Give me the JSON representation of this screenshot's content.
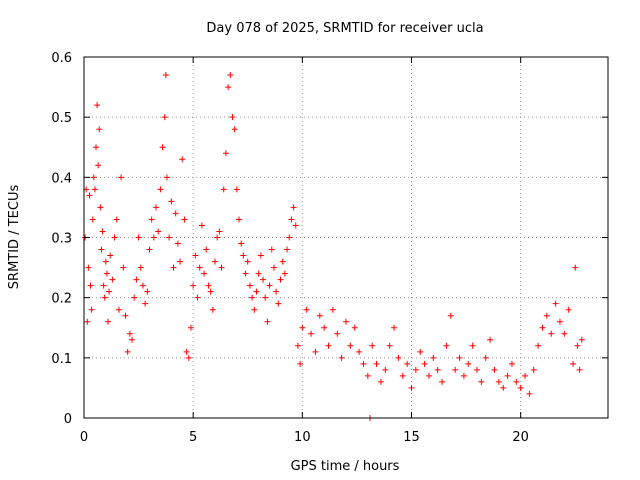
{
  "chart_data": {
    "type": "scatter",
    "title": "Day 078 of 2025, SRMTID for receiver ucla",
    "xlabel": "GPS time / hours",
    "ylabel": "SRMTID / TECUs",
    "xlim": [
      0,
      24
    ],
    "ylim": [
      0,
      0.6
    ],
    "xticks": [
      0,
      5,
      10,
      15,
      20
    ],
    "yticks": [
      0,
      0.1,
      0.2,
      0.3,
      0.4,
      0.5,
      0.6
    ],
    "grid": true,
    "marker": "+",
    "series": [
      {
        "name": "SRMTID",
        "color": "#ff0000",
        "points": [
          [
            0.05,
            0.3
          ],
          [
            0.1,
            0.38
          ],
          [
            0.15,
            0.16
          ],
          [
            0.2,
            0.25
          ],
          [
            0.25,
            0.37
          ],
          [
            0.3,
            0.22
          ],
          [
            0.35,
            0.18
          ],
          [
            0.4,
            0.33
          ],
          [
            0.45,
            0.4
          ],
          [
            0.5,
            0.38
          ],
          [
            0.55,
            0.45
          ],
          [
            0.6,
            0.52
          ],
          [
            0.65,
            0.42
          ],
          [
            0.7,
            0.48
          ],
          [
            0.75,
            0.35
          ],
          [
            0.8,
            0.28
          ],
          [
            0.85,
            0.31
          ],
          [
            0.9,
            0.22
          ],
          [
            0.95,
            0.2
          ],
          [
            1.0,
            0.26
          ],
          [
            1.05,
            0.24
          ],
          [
            1.1,
            0.16
          ],
          [
            1.15,
            0.21
          ],
          [
            1.2,
            0.27
          ],
          [
            1.3,
            0.23
          ],
          [
            1.4,
            0.3
          ],
          [
            1.5,
            0.33
          ],
          [
            1.6,
            0.18
          ],
          [
            1.7,
            0.4
          ],
          [
            1.8,
            0.25
          ],
          [
            1.9,
            0.17
          ],
          [
            2.0,
            0.11
          ],
          [
            2.1,
            0.14
          ],
          [
            2.2,
            0.13
          ],
          [
            2.3,
            0.2
          ],
          [
            2.4,
            0.23
          ],
          [
            2.5,
            0.3
          ],
          [
            2.6,
            0.25
          ],
          [
            2.7,
            0.22
          ],
          [
            2.8,
            0.19
          ],
          [
            2.9,
            0.21
          ],
          [
            3.0,
            0.28
          ],
          [
            3.1,
            0.33
          ],
          [
            3.2,
            0.3
          ],
          [
            3.3,
            0.35
          ],
          [
            3.4,
            0.31
          ],
          [
            3.5,
            0.38
          ],
          [
            3.6,
            0.45
          ],
          [
            3.7,
            0.5
          ],
          [
            3.75,
            0.57
          ],
          [
            3.8,
            0.4
          ],
          [
            3.9,
            0.3
          ],
          [
            4.0,
            0.36
          ],
          [
            4.1,
            0.25
          ],
          [
            4.2,
            0.34
          ],
          [
            4.3,
            0.29
          ],
          [
            4.4,
            0.26
          ],
          [
            4.5,
            0.43
          ],
          [
            4.6,
            0.33
          ],
          [
            4.7,
            0.11
          ],
          [
            4.8,
            0.1
          ],
          [
            4.9,
            0.15
          ],
          [
            5.0,
            0.22
          ],
          [
            5.1,
            0.27
          ],
          [
            5.2,
            0.2
          ],
          [
            5.3,
            0.25
          ],
          [
            5.4,
            0.32
          ],
          [
            5.5,
            0.24
          ],
          [
            5.6,
            0.28
          ],
          [
            5.7,
            0.22
          ],
          [
            5.8,
            0.21
          ],
          [
            5.9,
            0.18
          ],
          [
            6.0,
            0.26
          ],
          [
            6.1,
            0.3
          ],
          [
            6.2,
            0.31
          ],
          [
            6.3,
            0.25
          ],
          [
            6.4,
            0.38
          ],
          [
            6.5,
            0.44
          ],
          [
            6.6,
            0.55
          ],
          [
            6.7,
            0.57
          ],
          [
            6.8,
            0.5
          ],
          [
            6.9,
            0.48
          ],
          [
            7.0,
            0.38
          ],
          [
            7.1,
            0.33
          ],
          [
            7.2,
            0.29
          ],
          [
            7.3,
            0.27
          ],
          [
            7.4,
            0.24
          ],
          [
            7.5,
            0.26
          ],
          [
            7.6,
            0.22
          ],
          [
            7.7,
            0.2
          ],
          [
            7.8,
            0.18
          ],
          [
            7.9,
            0.21
          ],
          [
            8.0,
            0.24
          ],
          [
            8.1,
            0.27
          ],
          [
            8.2,
            0.23
          ],
          [
            8.3,
            0.2
          ],
          [
            8.4,
            0.16
          ],
          [
            8.5,
            0.22
          ],
          [
            8.6,
            0.28
          ],
          [
            8.7,
            0.25
          ],
          [
            8.8,
            0.21
          ],
          [
            8.9,
            0.19
          ],
          [
            9.0,
            0.23
          ],
          [
            9.1,
            0.26
          ],
          [
            9.2,
            0.24
          ],
          [
            9.3,
            0.28
          ],
          [
            9.4,
            0.3
          ],
          [
            9.5,
            0.33
          ],
          [
            9.6,
            0.35
          ],
          [
            9.7,
            0.32
          ],
          [
            9.8,
            0.12
          ],
          [
            9.9,
            0.09
          ],
          [
            10.0,
            0.15
          ],
          [
            10.2,
            0.18
          ],
          [
            10.4,
            0.14
          ],
          [
            10.6,
            0.11
          ],
          [
            10.8,
            0.17
          ],
          [
            11.0,
            0.15
          ],
          [
            11.2,
            0.12
          ],
          [
            11.4,
            0.18
          ],
          [
            11.6,
            0.14
          ],
          [
            11.8,
            0.1
          ],
          [
            12.0,
            0.16
          ],
          [
            12.2,
            0.12
          ],
          [
            12.4,
            0.15
          ],
          [
            12.6,
            0.11
          ],
          [
            12.8,
            0.09
          ],
          [
            13.0,
            0.07
          ],
          [
            13.1,
            0.0
          ],
          [
            13.2,
            0.12
          ],
          [
            13.4,
            0.09
          ],
          [
            13.6,
            0.06
          ],
          [
            13.8,
            0.08
          ],
          [
            14.0,
            0.12
          ],
          [
            14.2,
            0.15
          ],
          [
            14.4,
            0.1
          ],
          [
            14.6,
            0.07
          ],
          [
            14.8,
            0.09
          ],
          [
            15.0,
            0.05
          ],
          [
            15.2,
            0.08
          ],
          [
            15.4,
            0.11
          ],
          [
            15.6,
            0.09
          ],
          [
            15.8,
            0.07
          ],
          [
            16.0,
            0.1
          ],
          [
            16.2,
            0.08
          ],
          [
            16.4,
            0.06
          ],
          [
            16.6,
            0.12
          ],
          [
            16.8,
            0.17
          ],
          [
            17.0,
            0.08
          ],
          [
            17.2,
            0.1
          ],
          [
            17.4,
            0.07
          ],
          [
            17.6,
            0.09
          ],
          [
            17.8,
            0.12
          ],
          [
            18.0,
            0.08
          ],
          [
            18.2,
            0.06
          ],
          [
            18.4,
            0.1
          ],
          [
            18.6,
            0.13
          ],
          [
            18.8,
            0.08
          ],
          [
            19.0,
            0.06
          ],
          [
            19.2,
            0.05
          ],
          [
            19.4,
            0.07
          ],
          [
            19.6,
            0.09
          ],
          [
            19.8,
            0.06
          ],
          [
            20.0,
            0.05
          ],
          [
            20.2,
            0.07
          ],
          [
            20.4,
            0.04
          ],
          [
            20.6,
            0.08
          ],
          [
            20.8,
            0.12
          ],
          [
            21.0,
            0.15
          ],
          [
            21.2,
            0.17
          ],
          [
            21.4,
            0.14
          ],
          [
            21.6,
            0.19
          ],
          [
            21.8,
            0.16
          ],
          [
            22.0,
            0.14
          ],
          [
            22.2,
            0.18
          ],
          [
            22.4,
            0.09
          ],
          [
            22.5,
            0.25
          ],
          [
            22.6,
            0.12
          ],
          [
            22.7,
            0.08
          ],
          [
            22.8,
            0.13
          ]
        ]
      }
    ]
  }
}
